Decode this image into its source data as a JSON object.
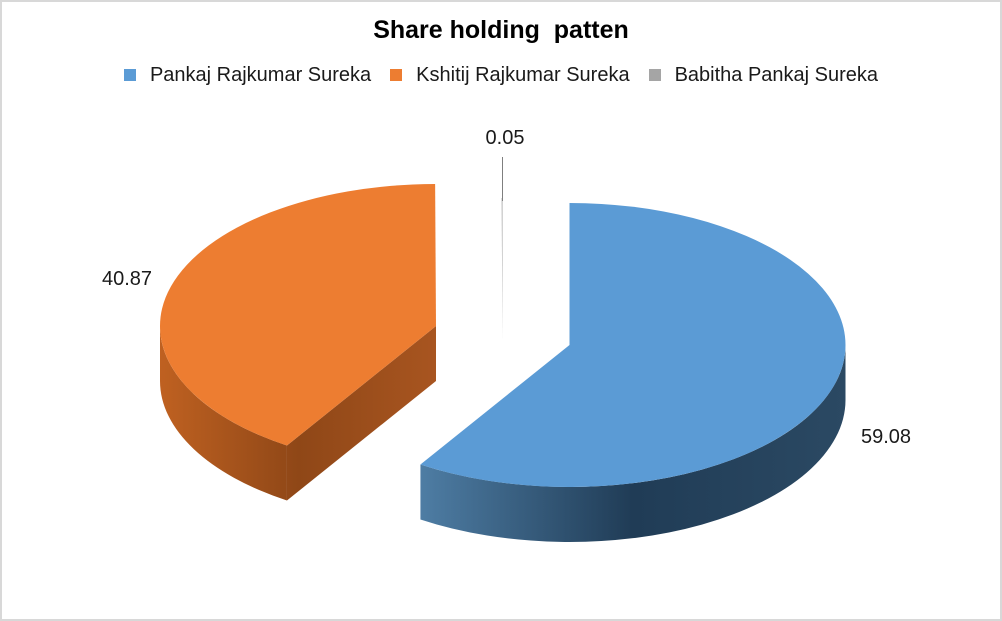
{
  "chart_data": {
    "type": "pie",
    "subtype": "3d-exploded-pie",
    "title": "Share holding  patten",
    "legend_position": "top",
    "grid": false,
    "slices": [
      {
        "name": "Pankaj Rajkumar Sureka",
        "value": 59.08,
        "label": "59.08",
        "color": "#5B9BD5"
      },
      {
        "name": "Kshitij Rajkumar Sureka",
        "value": 40.87,
        "label": "40.87",
        "color": "#ED7D31"
      },
      {
        "name": "Babitha Pankaj Sureka",
        "value": 0.05,
        "label": "0.05",
        "color": "#A5A5A5"
      }
    ]
  }
}
